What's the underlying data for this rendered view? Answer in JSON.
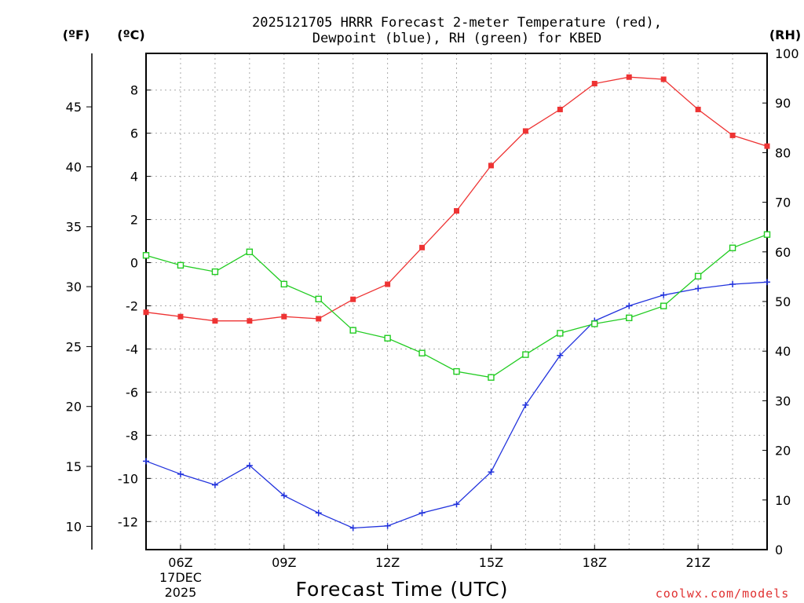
{
  "colors": {
    "temperature": "#ee3333",
    "dewpoint": "#2233dd",
    "rh": "#22cc22",
    "grid": "#aaaaaa",
    "credit": "#e03030"
  },
  "chart_data": {
    "type": "line",
    "title_line1": "2025121705 HRRR Forecast 2-meter Temperature (red),",
    "title_line2": "Dewpoint (blue), RH (green) for KBED",
    "xlabel": "Forecast Time (UTC)",
    "credit": "coolwx.com/models",
    "units": {
      "fahrenheit": "(ºF)",
      "celsius": "(ºC)",
      "rh": "(RH)"
    },
    "x_hours": [
      5,
      6,
      7,
      8,
      9,
      10,
      11,
      12,
      13,
      14,
      15,
      16,
      17,
      18,
      19,
      20,
      21,
      22,
      23
    ],
    "x_ticks": [
      {
        "hour": 6,
        "label": "06Z",
        "sub1": "17DEC",
        "sub2": "2025"
      },
      {
        "hour": 9,
        "label": "09Z"
      },
      {
        "hour": 12,
        "label": "12Z"
      },
      {
        "hour": 15,
        "label": "15Z"
      },
      {
        "hour": 18,
        "label": "18Z"
      },
      {
        "hour": 21,
        "label": "21Z"
      }
    ],
    "xlim": [
      5,
      23
    ],
    "celsius_axis": {
      "ylim": [
        -13.3,
        9.7
      ],
      "ticks": [
        8,
        6,
        4,
        2,
        0,
        -2,
        -4,
        -6,
        -8,
        -10,
        -12
      ]
    },
    "fahrenheit_axis": {
      "ticks": [
        45,
        40,
        35,
        30,
        25,
        20,
        15,
        10
      ]
    },
    "rh_axis": {
      "ylim": [
        0,
        100
      ],
      "ticks": [
        100,
        90,
        80,
        70,
        60,
        50,
        40,
        30,
        20,
        10,
        0
      ]
    },
    "series": [
      {
        "name": "Temperature",
        "units": "C",
        "marker": "filled-square",
        "values": [
          -2.3,
          -2.5,
          -2.7,
          -2.7,
          -2.5,
          -2.6,
          -1.7,
          -1.0,
          0.7,
          2.4,
          4.5,
          6.1,
          7.1,
          8.3,
          8.6,
          8.5,
          7.1,
          5.9,
          5.4
        ]
      },
      {
        "name": "Dewpoint",
        "units": "C",
        "marker": "plus",
        "values": [
          -9.2,
          -9.8,
          -10.3,
          -9.4,
          -10.8,
          -11.6,
          -12.3,
          -12.2,
          -11.6,
          -11.2,
          -9.7,
          -6.6,
          -4.3,
          -2.7,
          -2.0,
          -1.5,
          -1.2,
          -1.0,
          -0.9
        ]
      },
      {
        "name": "RH",
        "units": "%",
        "marker": "open-square",
        "values": [
          59.3,
          57.3,
          56.0,
          60.0,
          53.5,
          50.5,
          44.2,
          42.6,
          39.6,
          35.9,
          34.7,
          39.3,
          43.6,
          45.5,
          46.7,
          49.1,
          55.1,
          60.8,
          63.5
        ]
      }
    ]
  }
}
